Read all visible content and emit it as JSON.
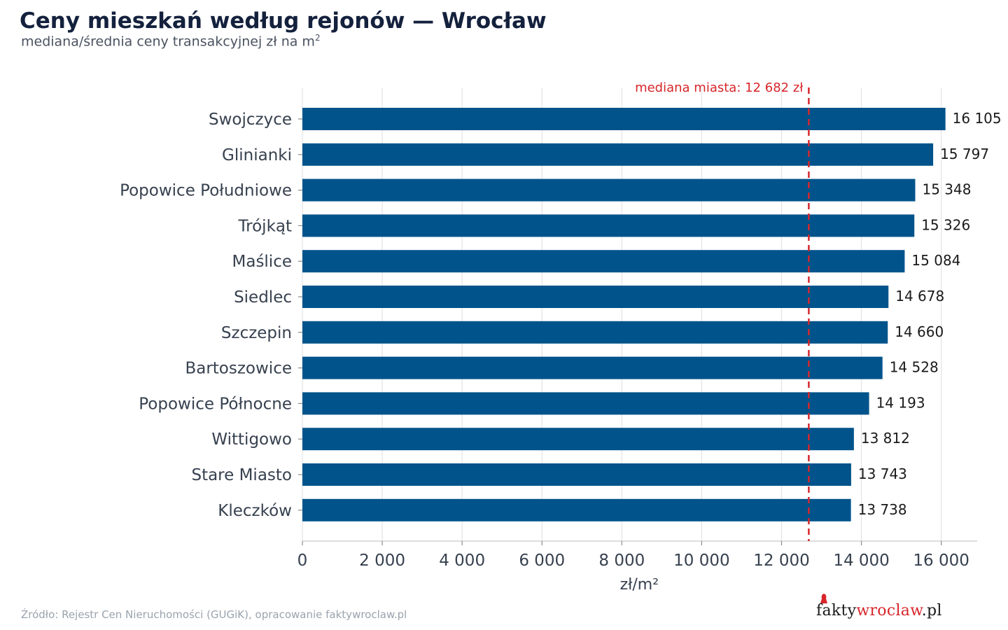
{
  "header": {
    "title": "Ceny mieszkań według rejonów — Wrocław",
    "subtitle_text": "mediana/średnia ceny transakcyjnej zł na m",
    "subtitle_sup": "2"
  },
  "footer": {
    "source": "Źródło: Rejestr Cen Nieruchomości (GUGiK), opracowanie faktywroclaw.pl"
  },
  "logo": {
    "part1": "fakty",
    "part2": "wroclaw",
    "part3": ".pl",
    "accent_color": "#d7262b"
  },
  "chart_data": {
    "type": "bar",
    "orientation": "horizontal",
    "categories": [
      "Swojczyce",
      "Glinianki",
      "Popowice Południowe",
      "Trójkąt",
      "Maślice",
      "Siedlec",
      "Szczepin",
      "Bartoszowice",
      "Popowice Północne",
      "Wittigowo",
      "Stare Miasto",
      "Kleczków"
    ],
    "values": [
      16105,
      15797,
      15348,
      15326,
      15084,
      14678,
      14660,
      14528,
      14193,
      13812,
      13743,
      13738
    ],
    "value_labels": [
      "16 105",
      "15 797",
      "15 348",
      "15 326",
      "15 084",
      "14 678",
      "14 660",
      "14 528",
      "14 193",
      "13 812",
      "13 743",
      "13 738"
    ],
    "xlabel": "zł/m²",
    "xlim": [
      0,
      16900
    ],
    "xticks": [
      0,
      2000,
      4000,
      6000,
      8000,
      10000,
      12000,
      14000,
      16000
    ],
    "xtick_labels": [
      "0",
      "2 000",
      "4 000",
      "6 000",
      "8 000",
      "10 000",
      "12 000",
      "14 000",
      "16 000"
    ],
    "grid": true,
    "reference_line": {
      "value": 12682,
      "label": "mediana miasta: 12 682 zł",
      "color": "#d7262b",
      "style": "dashed"
    },
    "bar_color": "#00538b"
  }
}
